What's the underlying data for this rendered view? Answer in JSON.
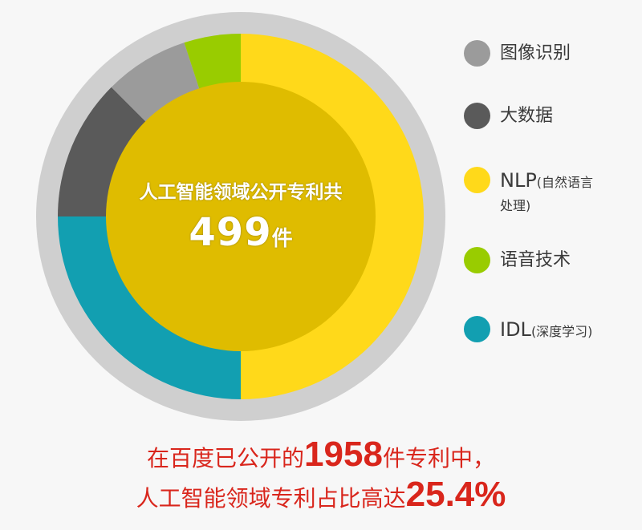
{
  "chart_data": {
    "type": "pie",
    "center_label": {
      "title": "人工智能领域公开专利共",
      "value": "499",
      "unit": "件"
    },
    "total": 499,
    "slices": [
      {
        "name": "NLP(自然语言处理)",
        "share": 0.5,
        "color": "#ffd91a",
        "inner_color": "#dfbc00"
      },
      {
        "name": "IDL(深度学习)",
        "share": 0.25,
        "color": "#129fb1"
      },
      {
        "name": "大数据",
        "share": 0.125,
        "color": "#5a5a5a"
      },
      {
        "name": "图像识别",
        "share": 0.075,
        "color": "#9b9b9b"
      },
      {
        "name": "语音技术",
        "share": 0.05,
        "color": "#99cc00"
      }
    ],
    "ring_color": "#cfcfcf"
  },
  "legend": {
    "items": [
      {
        "label": "图像识别",
        "color": "#9b9b9b"
      },
      {
        "label": "大数据",
        "color": "#5a5a5a"
      },
      {
        "label_main": "NLP",
        "label_paren_1": "(自然语言",
        "label_paren_2": "处理)",
        "color": "#ffd91a"
      },
      {
        "label": "语音技术",
        "color": "#99cc00"
      },
      {
        "label_main": "IDL",
        "label_paren": "(深度学习)",
        "color": "#129fb1"
      }
    ]
  },
  "caption": {
    "line1_pre": "在百度已公开的",
    "line1_num": "1958",
    "line1_post": "件专利中，",
    "line2_pre": "人工智能领域专利占比高达",
    "line2_num": "25.4%"
  }
}
